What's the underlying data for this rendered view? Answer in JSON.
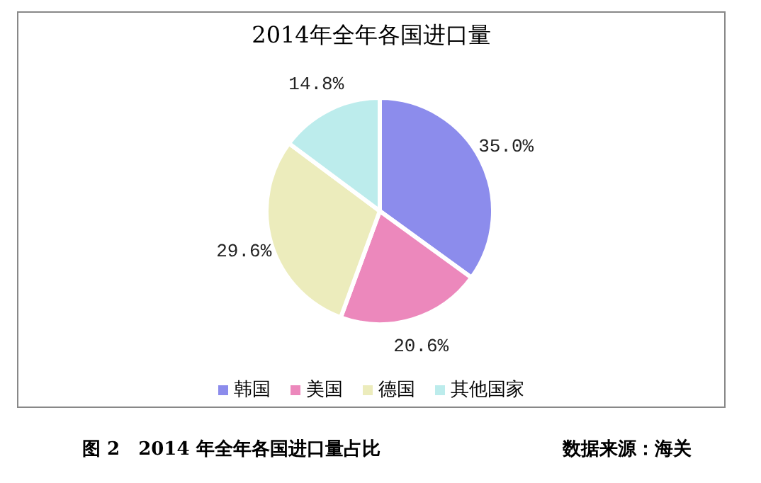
{
  "chart_data": {
    "type": "pie",
    "title": "2014年全年各国进口量",
    "categories": [
      "韩国",
      "美国",
      "德国",
      "其他国家"
    ],
    "values": [
      35.0,
      20.6,
      29.6,
      14.8
    ],
    "colors": [
      "#8c8cec",
      "#ec88bc",
      "#ececbc",
      "#bcecec"
    ],
    "value_labels": [
      "35.0%",
      "20.6%",
      "29.6%",
      "14.8%"
    ],
    "legend": "bottom",
    "annotations": [
      "图 2　2014 年全年各国进口量占比",
      "数据来源：海关"
    ]
  }
}
